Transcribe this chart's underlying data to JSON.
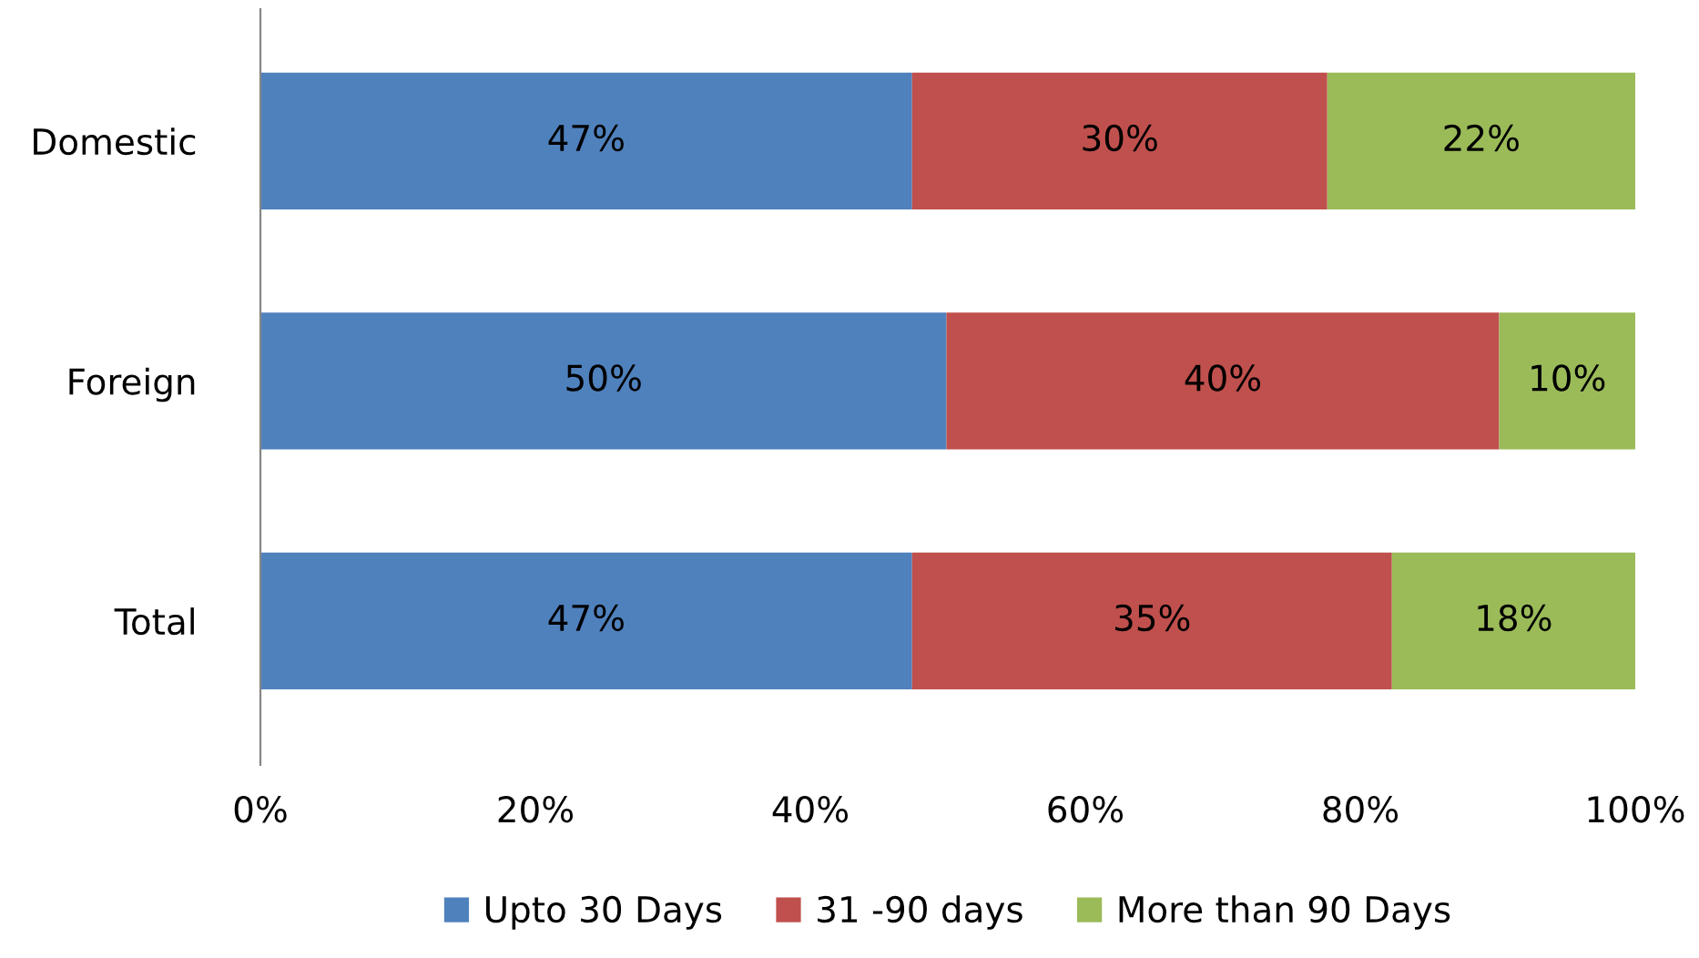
{
  "chart_data": {
    "type": "bar",
    "orientation": "horizontal",
    "stacked": true,
    "categories": [
      "Domestic",
      "Foreign",
      "Total"
    ],
    "series": [
      {
        "name": "Upto 30 Days",
        "color": "#4f81bd",
        "values": [
          47.4,
          49.9,
          47.4
        ],
        "value_labels": [
          "47%",
          "50%",
          "47%"
        ]
      },
      {
        "name": "31 -90 days",
        "color": "#c0504d",
        "values": [
          30.2,
          40.2,
          34.9
        ],
        "value_labels": [
          "30%",
          "40%",
          "35%"
        ]
      },
      {
        "name": "More than 90 Days",
        "color": "#9bbb59",
        "values": [
          22.4,
          9.9,
          17.7
        ],
        "value_labels": [
          "22%",
          "10%",
          "18%"
        ]
      }
    ],
    "xlim": [
      0,
      100
    ],
    "xticks": [
      {
        "value": 0,
        "label": "0%"
      },
      {
        "value": 20,
        "label": "20%"
      },
      {
        "value": 40,
        "label": "40%"
      },
      {
        "value": 60,
        "label": "60%"
      },
      {
        "value": 80,
        "label": "80%"
      },
      {
        "value": 100,
        "label": "100%"
      }
    ],
    "grid": false,
    "legend": "bottom"
  }
}
